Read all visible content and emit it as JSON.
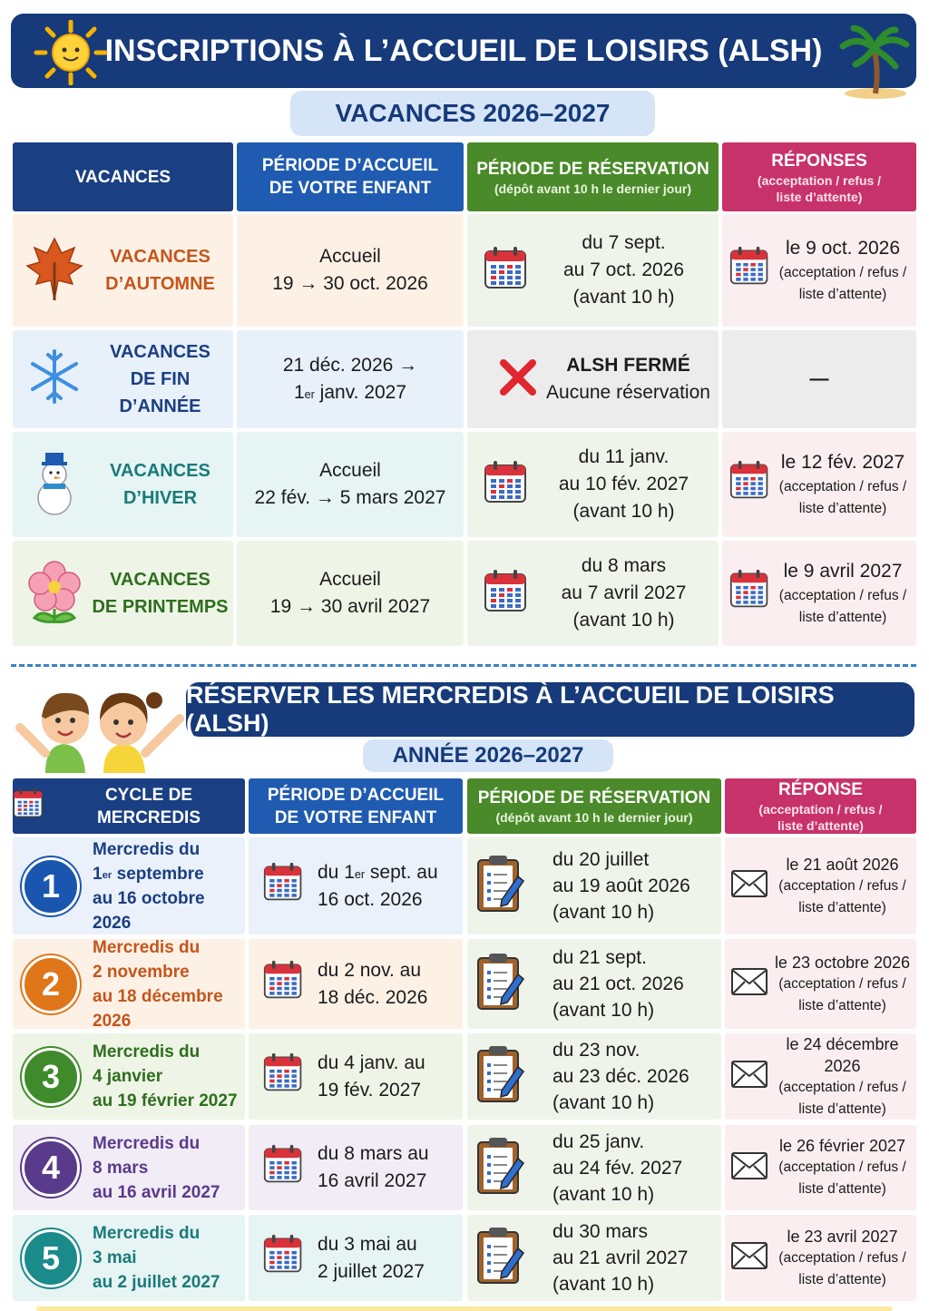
{
  "header": {
    "title": "INSCRIPTIONS À L’ACCUEIL DE LOISIRS (ALSH)",
    "subtitle": "VACANCES 2026–2027"
  },
  "vacances": {
    "columns": [
      {
        "title": [
          "VACANCES"
        ]
      },
      {
        "title": [
          "PÉRIODE D’ACCUEIL",
          "DE VOTRE ENFANT"
        ]
      },
      {
        "title": [
          "PÉRIODE DE RÉSERVATION"
        ],
        "note": [
          "(dépôt avant 10 h le dernier jour)"
        ]
      },
      {
        "title": [
          "RÉPONSES"
        ],
        "note": [
          "(acceptation / refus /",
          "liste d’attente)"
        ]
      }
    ],
    "rows": [
      {
        "name": [
          "VACANCES",
          "D’AUTOMNE"
        ],
        "accueil": [
          "Accueil",
          "19 → 30 oct. 2026"
        ],
        "reservation": [
          "du 7 sept.",
          "au 7 oct. 2026",
          "(avant 10 h)"
        ],
        "reponse": {
          "date": "le 9 oct. 2026",
          "note": [
            "(acceptation / refus /",
            "liste d’attente)"
          ]
        }
      },
      {
        "name": [
          "VACANCES",
          "DE FIN D’ANNÉE"
        ],
        "accueil": [
          "21 déc. 2026 →",
          {
            "pre": "1",
            "sup": "er",
            "post": " janv. 2027"
          }
        ],
        "closed": {
          "title": "ALSH FERMÉ",
          "text": "Aucune réservation"
        },
        "reponse": {
          "date": "—"
        }
      },
      {
        "name": [
          "VACANCES",
          "D’HIVER"
        ],
        "accueil": [
          "Accueil",
          "22 fév. → 5 mars 2027"
        ],
        "reservation": [
          "du 11 janv.",
          "au 10 fév. 2027",
          "(avant 10 h)"
        ],
        "reponse": {
          "date": "le 12 fév. 2027",
          "note": [
            "(acceptation / refus /",
            "liste d’attente)"
          ]
        }
      },
      {
        "name": [
          "VACANCES",
          "DE PRINTEMPS"
        ],
        "accueil": [
          "Accueil",
          "19 → 30 avril 2027"
        ],
        "reservation": [
          "du 8 mars",
          "au 7 avril 2027",
          "(avant 10 h)"
        ],
        "reponse": {
          "date": "le 9 avril 2027",
          "note": [
            "(acceptation / refus /",
            "liste d’attente)"
          ]
        }
      }
    ]
  },
  "mercredis": {
    "title": "RÉSERVER LES MERCREDIS À L’ACCUEIL DE LOISIRS (ALSH)",
    "subtitle": "ANNÉE 2026–2027",
    "columns": [
      {
        "title": [
          "CYCLE DE MERCREDIS"
        ]
      },
      {
        "title": [
          "PÉRIODE D’ACCUEIL",
          "DE VOTRE ENFANT"
        ]
      },
      {
        "title": [
          "PÉRIODE DE RÉSERVATION"
        ],
        "note": [
          "(dépôt avant 10 h le dernier jour)"
        ]
      },
      {
        "title": [
          "RÉPONSE"
        ],
        "note": [
          "(acceptation / refus /",
          "liste d’attente)"
        ]
      }
    ],
    "rows": [
      {
        "number": "1",
        "cycle": [
          "Mercredis du",
          {
            "pre": "1",
            "sup": "er",
            "post": " septembre"
          },
          "au 16 octobre 2026"
        ],
        "accueil": [
          {
            "pre": "du 1",
            "sup": "er",
            "post": " sept. au"
          },
          "16 oct. 2026"
        ],
        "reservation": [
          "du 20 juillet",
          "au 19 août 2026",
          "(avant 10 h)"
        ],
        "reponse": {
          "date": "le 21 août 2026",
          "note": [
            "(acceptation / refus /",
            "liste d’attente)"
          ]
        }
      },
      {
        "number": "2",
        "cycle": [
          "Mercredis du",
          "2 novembre",
          "au 18 décembre 2026"
        ],
        "accueil": [
          "du 2 nov. au",
          "18 déc. 2026"
        ],
        "reservation": [
          "du 21 sept.",
          "au 21 oct. 2026",
          "(avant 10 h)"
        ],
        "reponse": {
          "date": "le 23 octobre 2026",
          "note": [
            "(acceptation / refus /",
            "liste d’attente)"
          ]
        }
      },
      {
        "number": "3",
        "cycle": [
          "Mercredis du",
          "4 janvier",
          "au 19 février 2027"
        ],
        "accueil": [
          "du 4 janv. au",
          "19 fév. 2027"
        ],
        "reservation": [
          "du 23 nov.",
          "au 23 déc. 2026",
          "(avant 10 h)"
        ],
        "reponse": {
          "date": "le 24 décembre 2026",
          "note": [
            "(acceptation / refus /",
            "liste d’attente)"
          ]
        }
      },
      {
        "number": "4",
        "cycle": [
          "Mercredis du",
          "8 mars",
          "au 16 avril 2027"
        ],
        "accueil": [
          "du 8 mars au",
          "16 avril 2027"
        ],
        "reservation": [
          "du 25 janv.",
          "au 24 fév. 2027",
          "(avant 10 h)"
        ],
        "reponse": {
          "date": "le 26 février 2027",
          "note": [
            "(acceptation / refus /",
            "liste d’attente)"
          ]
        }
      },
      {
        "number": "5",
        "cycle": [
          "Mercredis du",
          "3 mai",
          "au 2 juillet 2027"
        ],
        "accueil": [
          "du 3 mai au",
          "2 juillet 2027"
        ],
        "reservation": [
          "du 30 mars",
          "au 21 avril 2027",
          "(avant 10 h)"
        ],
        "reponse": {
          "date": "le 23 avril 2027",
          "note": [
            "(acceptation / refus /",
            "liste d’attente)"
          ]
        }
      }
    ]
  }
}
